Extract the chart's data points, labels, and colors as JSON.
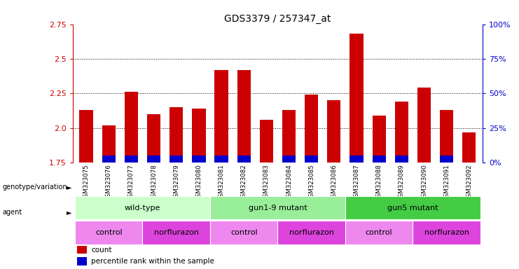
{
  "title": "GDS3379 / 257347_at",
  "samples": [
    "GSM323075",
    "GSM323076",
    "GSM323077",
    "GSM323078",
    "GSM323079",
    "GSM323080",
    "GSM323081",
    "GSM323082",
    "GSM323083",
    "GSM323084",
    "GSM323085",
    "GSM323086",
    "GSM323087",
    "GSM323088",
    "GSM323089",
    "GSM323090",
    "GSM323091",
    "GSM323092"
  ],
  "counts": [
    2.13,
    2.02,
    2.26,
    2.1,
    2.15,
    2.14,
    2.42,
    2.42,
    2.06,
    2.13,
    2.24,
    2.2,
    2.68,
    2.09,
    2.19,
    2.29,
    2.13,
    1.97
  ],
  "percentile_ranks": [
    0,
    5,
    5,
    5,
    5,
    5,
    5,
    5,
    0,
    5,
    5,
    0,
    5,
    5,
    5,
    0,
    5,
    0
  ],
  "ymin": 1.75,
  "ymax": 2.75,
  "yticks": [
    1.75,
    2.0,
    2.25,
    2.5,
    2.75
  ],
  "right_yticks_pct": [
    0,
    25,
    50,
    75,
    100
  ],
  "bar_color": "#cc0000",
  "blue_color": "#0000cc",
  "bar_bottom": 1.75,
  "genotype_groups": [
    {
      "label": "wild-type",
      "start": 0,
      "end": 5,
      "color": "#ccffcc"
    },
    {
      "label": "gun1-9 mutant",
      "start": 6,
      "end": 11,
      "color": "#99ee99"
    },
    {
      "label": "gun5 mutant",
      "start": 12,
      "end": 17,
      "color": "#44cc44"
    }
  ],
  "agent_groups": [
    {
      "label": "control",
      "start": 0,
      "end": 2,
      "color": "#ee88ee"
    },
    {
      "label": "norflurazon",
      "start": 3,
      "end": 5,
      "color": "#dd44dd"
    },
    {
      "label": "control",
      "start": 6,
      "end": 8,
      "color": "#ee88ee"
    },
    {
      "label": "norflurazon",
      "start": 9,
      "end": 11,
      "color": "#dd44dd"
    },
    {
      "label": "control",
      "start": 12,
      "end": 14,
      "color": "#ee88ee"
    },
    {
      "label": "norflurazon",
      "start": 15,
      "end": 17,
      "color": "#dd44dd"
    }
  ],
  "tick_label_color_left": "#cc0000",
  "tick_label_color_right": "#0000cc",
  "bar_width": 0.6,
  "xtick_bg_color": "#cccccc"
}
